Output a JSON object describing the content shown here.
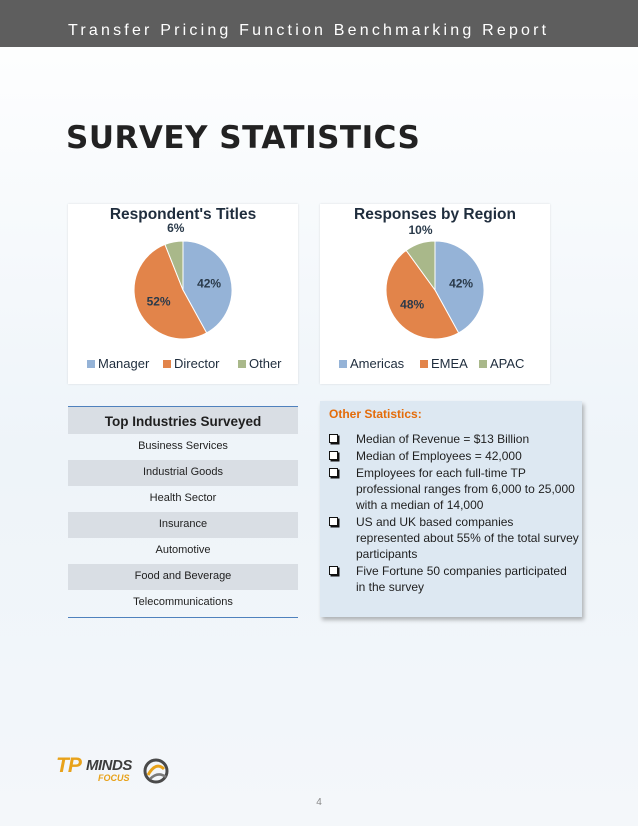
{
  "header": {
    "title": "Transfer Pricing Function Benchmarking Report"
  },
  "page_title": "SURVEY STATISTICS",
  "chart_data": [
    {
      "type": "pie",
      "title": "Respondent's Titles",
      "categories": [
        "Manager",
        "Director",
        "Other"
      ],
      "values": [
        42,
        52,
        6
      ],
      "labels": [
        "42%",
        "52%",
        "6%"
      ],
      "colors": [
        "#95b3d7",
        "#e2844a",
        "#a9b88a"
      ],
      "legend_position": "bottom"
    },
    {
      "type": "pie",
      "title": "Responses by Region",
      "categories": [
        "Americas",
        "EMEA",
        "APAC"
      ],
      "values": [
        42,
        48,
        10
      ],
      "labels": [
        "42%",
        "48%",
        "10%"
      ],
      "colors": [
        "#95b3d7",
        "#e2844a",
        "#a9b88a"
      ],
      "legend_position": "bottom"
    }
  ],
  "industries": {
    "header": "Top Industries Surveyed",
    "items": [
      "Business Services",
      "Industrial Goods",
      "Health Sector",
      "Insurance",
      "Automotive",
      "Food and Beverage",
      "Telecommunications"
    ]
  },
  "other_stats": {
    "title": "Other Statistics:",
    "items": [
      "Median of Revenue = $13 Billion",
      "Median of Employees = 42,000",
      "Employees for each full-time TP professional ranges from 6,000 to 25,000 with a median of 14,000",
      "US and UK based companies represented about 55% of the total survey participants",
      "Five Fortune 50 companies participated in the survey"
    ]
  },
  "logo": {
    "tp": "TP",
    "minds": "MINDS",
    "focus": "FOCUS"
  },
  "page_number": "4"
}
